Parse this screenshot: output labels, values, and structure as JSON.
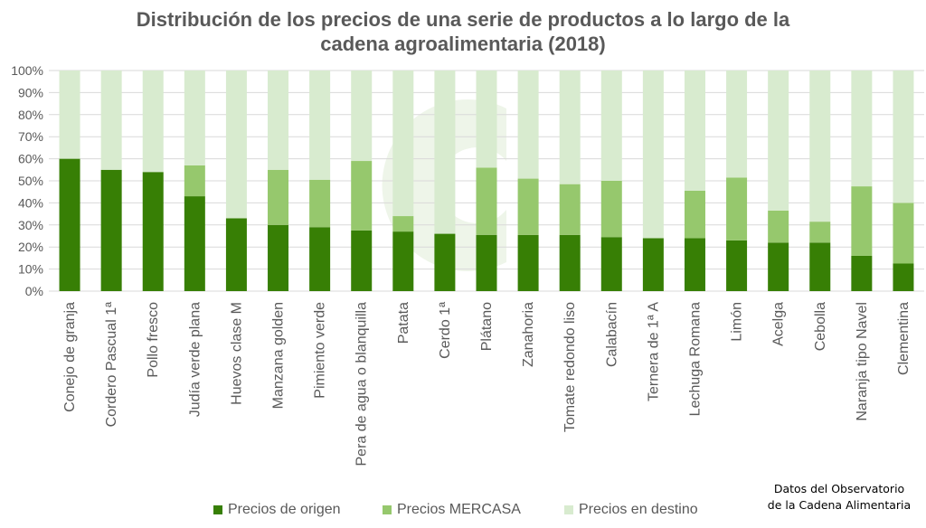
{
  "title": {
    "line1": "Distribución de los precios de una serie de productos a lo largo de la",
    "line2": "cadena agroalimentaria (2018)"
  },
  "source_note": {
    "line1": "Datos del Observatorio",
    "line2": "de la Cadena Alimentaria"
  },
  "colors": {
    "origen": "#377f05",
    "mercasa": "#96c86d",
    "destino": "#d8ebcf",
    "grid": "#d9d9d9",
    "axis_text": "#595959"
  },
  "chart_data": {
    "type": "bar",
    "stacked": true,
    "title": "Distribución de los precios de una serie de productos a lo largo de la cadena agroalimentaria (2018)",
    "xlabel": "",
    "ylabel": "",
    "ylim": [
      0,
      100
    ],
    "y_ticks": [
      "0%",
      "10%",
      "20%",
      "30%",
      "40%",
      "50%",
      "60%",
      "70%",
      "80%",
      "90%",
      "100%"
    ],
    "grid": true,
    "legend_position": "bottom",
    "categories": [
      "Conejo de granja",
      "Cordero Pascual 1ª",
      "Pollo fresco",
      "Judía verde plana",
      "Huevos clase M",
      "Manzana golden",
      "Pimiento verde",
      "Pera de agua o blanquilla",
      "Patata",
      "Cerdo 1ª",
      "Plátano",
      "Zanahoria",
      "Tomate redondo liso",
      "Calabacín",
      "Ternera de 1ª A",
      "Lechuga Romana",
      "Limón",
      "Acelga",
      "Cebolla",
      "Naranja tipo Navel",
      "Clementina"
    ],
    "series": [
      {
        "name": "Precios de origen",
        "values": [
          60,
          55,
          54,
          43,
          33,
          30,
          29,
          27.5,
          27,
          26,
          25.5,
          25.5,
          25.5,
          24.5,
          24,
          24,
          23,
          22,
          22,
          16,
          12.5
        ]
      },
      {
        "name": "Precios MERCASA",
        "values": [
          0,
          0,
          0,
          14,
          0,
          25,
          21.5,
          31.5,
          7,
          0,
          30.5,
          25.5,
          23,
          25.5,
          0,
          21.5,
          28.5,
          14.5,
          9.5,
          31.5,
          27.5
        ]
      },
      {
        "name": "Precios en destino",
        "values": [
          40,
          45,
          46,
          43,
          67,
          45,
          49.5,
          41,
          66,
          74,
          44,
          49,
          51.5,
          50,
          76,
          54.5,
          48.5,
          63.5,
          68.5,
          52.5,
          60
        ]
      }
    ]
  }
}
